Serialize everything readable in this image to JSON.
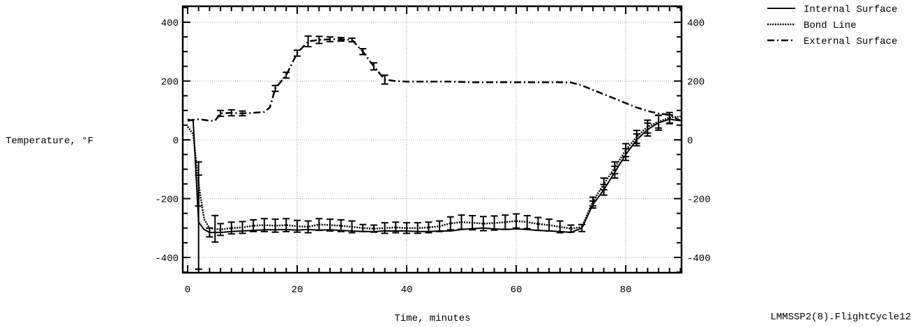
{
  "chart_data": {
    "type": "line",
    "xlabel": "Time, minutes",
    "ylabel": "Temperature, °F",
    "footnote": "LMMSSP2(8).FlightCycle12",
    "xlim": [
      0,
      90
    ],
    "ylim": [
      -450,
      460
    ],
    "x_ticks": [
      "0",
      "20",
      "40",
      "60",
      "80"
    ],
    "y_ticks": [
      "400",
      "200",
      "0",
      "-200",
      "-400"
    ],
    "y_ticks_right": [
      "400",
      "200",
      "0",
      "-200",
      "-400"
    ],
    "grid": true,
    "legend_position": "top-right",
    "series": [
      {
        "name": "Internal Surface",
        "style": "solid",
        "points": [
          [
            0,
            70
          ],
          [
            1,
            65
          ],
          [
            2,
            -280
          ],
          [
            3,
            -305
          ],
          [
            4,
            -315
          ],
          [
            6,
            -315
          ],
          [
            8,
            -312
          ],
          [
            10,
            -310
          ],
          [
            12,
            -308
          ],
          [
            14,
            -306
          ],
          [
            16,
            -306
          ],
          [
            18,
            -305
          ],
          [
            20,
            -307
          ],
          [
            22,
            -305
          ],
          [
            24,
            -307
          ],
          [
            26,
            -306
          ],
          [
            28,
            -308
          ],
          [
            30,
            -310
          ],
          [
            32,
            -312
          ],
          [
            34,
            -312
          ],
          [
            36,
            -310
          ],
          [
            38,
            -310
          ],
          [
            40,
            -310
          ],
          [
            42,
            -312
          ],
          [
            44,
            -312
          ],
          [
            46,
            -310
          ],
          [
            48,
            -310
          ],
          [
            50,
            -305
          ],
          [
            52,
            -302
          ],
          [
            54,
            -300
          ],
          [
            56,
            -303
          ],
          [
            58,
            -305
          ],
          [
            60,
            -303
          ],
          [
            62,
            -305
          ],
          [
            64,
            -308
          ],
          [
            66,
            -310
          ],
          [
            68,
            -312
          ],
          [
            70,
            -315
          ],
          [
            72,
            -300
          ],
          [
            74,
            -220
          ],
          [
            76,
            -170
          ],
          [
            78,
            -110
          ],
          [
            80,
            -50
          ],
          [
            82,
            0
          ],
          [
            84,
            35
          ],
          [
            86,
            58
          ],
          [
            88,
            70
          ],
          [
            90,
            65
          ]
        ],
        "error_bars": [
          [
            2,
            160
          ],
          [
            4,
            15
          ],
          [
            72,
            12
          ],
          [
            74,
            12
          ],
          [
            76,
            18
          ],
          [
            78,
            20
          ],
          [
            80,
            20
          ],
          [
            82,
            20
          ],
          [
            84,
            22
          ],
          [
            86,
            25
          ],
          [
            88,
            15
          ]
        ]
      },
      {
        "name": "Bond Line",
        "style": "dotted",
        "points": [
          [
            0,
            45
          ],
          [
            1,
            20
          ],
          [
            2,
            -150
          ],
          [
            3,
            -270
          ],
          [
            4,
            -300
          ],
          [
            6,
            -305
          ],
          [
            8,
            -300
          ],
          [
            10,
            -298
          ],
          [
            12,
            -292
          ],
          [
            14,
            -290
          ],
          [
            16,
            -292
          ],
          [
            18,
            -290
          ],
          [
            20,
            -294
          ],
          [
            22,
            -296
          ],
          [
            24,
            -288
          ],
          [
            26,
            -290
          ],
          [
            28,
            -292
          ],
          [
            30,
            -296
          ],
          [
            32,
            -300
          ],
          [
            34,
            -302
          ],
          [
            36,
            -300
          ],
          [
            38,
            -298
          ],
          [
            40,
            -300
          ],
          [
            42,
            -300
          ],
          [
            44,
            -298
          ],
          [
            46,
            -294
          ],
          [
            48,
            -284
          ],
          [
            50,
            -280
          ],
          [
            52,
            -282
          ],
          [
            54,
            -285
          ],
          [
            56,
            -283
          ],
          [
            58,
            -280
          ],
          [
            60,
            -276
          ],
          [
            62,
            -280
          ],
          [
            64,
            -286
          ],
          [
            66,
            -290
          ],
          [
            68,
            -296
          ],
          [
            70,
            -302
          ],
          [
            72,
            -296
          ],
          [
            74,
            -210
          ],
          [
            76,
            -150
          ],
          [
            78,
            -95
          ],
          [
            80,
            -35
          ],
          [
            82,
            10
          ],
          [
            84,
            45
          ],
          [
            86,
            62
          ],
          [
            88,
            75
          ],
          [
            90,
            80
          ]
        ],
        "error_bars": [
          [
            2,
            75
          ],
          [
            5,
            45
          ],
          [
            6,
            20
          ],
          [
            8,
            20
          ],
          [
            10,
            20
          ],
          [
            12,
            20
          ],
          [
            14,
            22
          ],
          [
            16,
            22
          ],
          [
            18,
            22
          ],
          [
            20,
            20
          ],
          [
            22,
            20
          ],
          [
            24,
            20
          ],
          [
            26,
            20
          ],
          [
            28,
            20
          ],
          [
            30,
            20
          ],
          [
            32,
            12
          ],
          [
            34,
            12
          ],
          [
            36,
            18
          ],
          [
            38,
            18
          ],
          [
            40,
            18
          ],
          [
            42,
            18
          ],
          [
            44,
            18
          ],
          [
            46,
            18
          ],
          [
            48,
            22
          ],
          [
            50,
            24
          ],
          [
            52,
            24
          ],
          [
            54,
            24
          ],
          [
            56,
            24
          ],
          [
            58,
            24
          ],
          [
            60,
            24
          ],
          [
            62,
            22
          ],
          [
            64,
            22
          ],
          [
            66,
            20
          ],
          [
            68,
            20
          ],
          [
            70,
            12
          ],
          [
            74,
            15
          ],
          [
            76,
            20
          ],
          [
            78,
            20
          ],
          [
            80,
            22
          ],
          [
            82,
            22
          ],
          [
            84,
            22
          ],
          [
            86,
            22
          ],
          [
            88,
            18
          ]
        ]
      },
      {
        "name": "External Surface",
        "style": "dash-dot",
        "points": [
          [
            0,
            65
          ],
          [
            1,
            68
          ],
          [
            2,
            70
          ],
          [
            3,
            68
          ],
          [
            4,
            65
          ],
          [
            5,
            65
          ],
          [
            6,
            90
          ],
          [
            8,
            92
          ],
          [
            10,
            90
          ],
          [
            12,
            92
          ],
          [
            14,
            95
          ],
          [
            15,
            110
          ],
          [
            16,
            175
          ],
          [
            18,
            220
          ],
          [
            20,
            295
          ],
          [
            22,
            335
          ],
          [
            24,
            340
          ],
          [
            26,
            342
          ],
          [
            28,
            342
          ],
          [
            30,
            340
          ],
          [
            32,
            300
          ],
          [
            34,
            250
          ],
          [
            36,
            205
          ],
          [
            38,
            200
          ],
          [
            40,
            198
          ],
          [
            44,
            198
          ],
          [
            48,
            198
          ],
          [
            52,
            196
          ],
          [
            56,
            196
          ],
          [
            60,
            196
          ],
          [
            64,
            196
          ],
          [
            68,
            196
          ],
          [
            70,
            195
          ],
          [
            72,
            185
          ],
          [
            74,
            170
          ],
          [
            76,
            155
          ],
          [
            78,
            140
          ],
          [
            80,
            125
          ],
          [
            82,
            110
          ],
          [
            84,
            98
          ],
          [
            86,
            90
          ],
          [
            88,
            85
          ],
          [
            90,
            65
          ]
        ],
        "error_bars": [
          [
            6,
            10
          ],
          [
            8,
            10
          ],
          [
            10,
            8
          ],
          [
            16,
            10
          ],
          [
            18,
            10
          ],
          [
            20,
            10
          ],
          [
            22,
            18
          ],
          [
            24,
            12
          ],
          [
            26,
            8
          ],
          [
            28,
            6
          ],
          [
            30,
            6
          ],
          [
            32,
            10
          ],
          [
            34,
            12
          ],
          [
            36,
            15
          ]
        ]
      }
    ]
  }
}
